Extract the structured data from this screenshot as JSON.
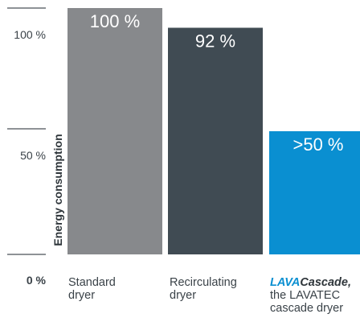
{
  "chart_data": {
    "type": "bar",
    "ylabel": "Energy consumption",
    "ylim": [
      0,
      100
    ],
    "yticks": [
      {
        "value": 100,
        "label": "100 %"
      },
      {
        "value": 50,
        "label": "50 %"
      },
      {
        "value": 0,
        "label": "0 %"
      }
    ],
    "categories": [
      {
        "lines": [
          "Standard",
          "dryer"
        ]
      },
      {
        "lines": [
          "Recirculating",
          "dryer"
        ]
      },
      {
        "brand": [
          "LAVA",
          "Cascade",
          ","
        ],
        "lines": [
          "the LAVATEC",
          "cascade dryer"
        ]
      }
    ],
    "values": [
      100,
      92,
      50
    ],
    "value_labels": [
      "100 %",
      "92 %",
      ">50 %"
    ],
    "colors": [
      "#87898c",
      "#404b53",
      "#0a8fd1"
    ],
    "grid": false
  }
}
